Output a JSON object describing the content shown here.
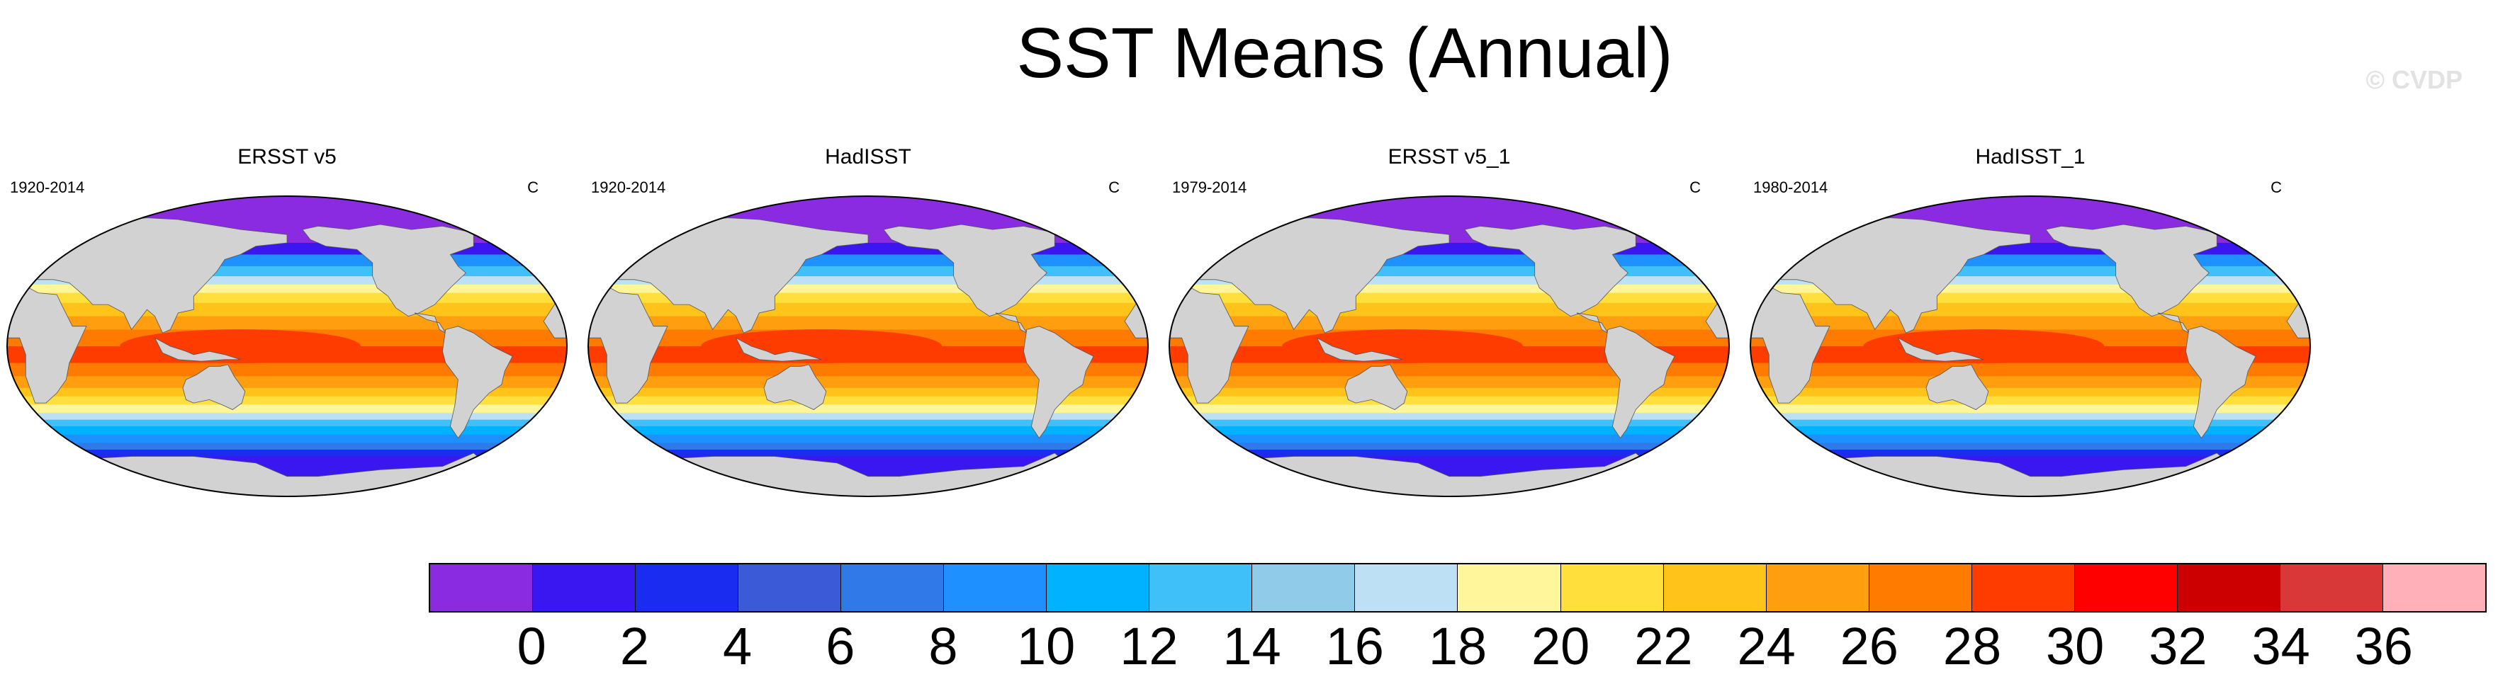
{
  "figure": {
    "title": "SST Means (Annual)",
    "credit": "© CVDP"
  },
  "panels": [
    {
      "title": "ERSST v5",
      "period": "1920-2014",
      "units": "C"
    },
    {
      "title": "HadISST",
      "period": "1920-2014",
      "units": "C"
    },
    {
      "title": "ERSST v5_1",
      "period": "1979-2014",
      "units": "C"
    },
    {
      "title": "HadISST_1",
      "period": "1980-2014",
      "units": "C"
    }
  ],
  "colorbar": {
    "colors": [
      "#8a2be2",
      "#3a16f0",
      "#1a2cf0",
      "#3b5ad8",
      "#2f79e8",
      "#1e90ff",
      "#00b2ff",
      "#40c0f8",
      "#90ccea",
      "#bde0f4",
      "#fff59a",
      "#ffdf3c",
      "#ffc31a",
      "#ff9f0f",
      "#ff7b00",
      "#ff3c00",
      "#ff0000",
      "#cc0000",
      "#d83838",
      "#ffb0b8"
    ],
    "tick_labels": [
      "0",
      "2",
      "4",
      "6",
      "8",
      "10",
      "12",
      "14",
      "16",
      "18",
      "20",
      "22",
      "24",
      "26",
      "28",
      "30",
      "32",
      "34",
      "36"
    ]
  },
  "map_style": {
    "land_color": "#d2d2d2",
    "ocean_bands": [
      {
        "lat": 90,
        "color": "#8a2be2"
      },
      {
        "lat": 70,
        "color": "#8a2be2"
      },
      {
        "lat": 62,
        "color": "#3a16f0"
      },
      {
        "lat": 55,
        "color": "#1e90ff"
      },
      {
        "lat": 48,
        "color": "#40c0f8"
      },
      {
        "lat": 42,
        "color": "#bde0f4"
      },
      {
        "lat": 37,
        "color": "#fff59a"
      },
      {
        "lat": 32,
        "color": "#ffdf3c"
      },
      {
        "lat": 26,
        "color": "#ffc31a"
      },
      {
        "lat": 18,
        "color": "#ff9f0f"
      },
      {
        "lat": 10,
        "color": "#ff7b00"
      },
      {
        "lat": 0,
        "color": "#ff3c00"
      },
      {
        "lat": -10,
        "color": "#ff7b00"
      },
      {
        "lat": -18,
        "color": "#ff9f0f"
      },
      {
        "lat": -25,
        "color": "#ffc31a"
      },
      {
        "lat": -30,
        "color": "#ffdf3c"
      },
      {
        "lat": -35,
        "color": "#fff59a"
      },
      {
        "lat": -40,
        "color": "#bde0f4"
      },
      {
        "lat": -44,
        "color": "#40c0f8"
      },
      {
        "lat": -48,
        "color": "#00b2ff"
      },
      {
        "lat": -53,
        "color": "#1e90ff"
      },
      {
        "lat": -58,
        "color": "#2f79e8"
      },
      {
        "lat": -62,
        "color": "#1a2cf0"
      },
      {
        "lat": -66,
        "color": "#3a16f0"
      },
      {
        "lat": -90,
        "color": "#8a2be2"
      }
    ]
  }
}
